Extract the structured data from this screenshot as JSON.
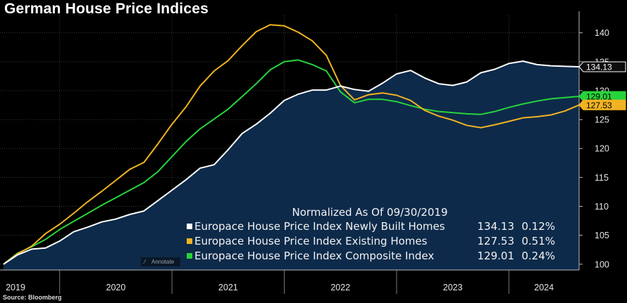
{
  "title": "German House Price Indices",
  "source": "Source: Bloomberg",
  "annotate_label": "Annotate",
  "colors": {
    "background": "#000000",
    "area_fill": "#0d2a4a",
    "grid": "#3a3a3a",
    "newly_built": "#ffffff",
    "existing": "#f0b323",
    "composite": "#27d33b"
  },
  "chart_data": {
    "type": "line",
    "title": "German House Price Indices",
    "subtitle": "Normalized As Of 09/30/2019",
    "x_axis": {
      "tick_labels": [
        "2019",
        "2020",
        "2021",
        "2022",
        "2023",
        "2024"
      ],
      "range_quarters": [
        "2019-Q3",
        "2024-Q3"
      ]
    },
    "y_axis": {
      "position": "right",
      "ylim": [
        99,
        143
      ],
      "ticks": [
        100,
        105,
        110,
        115,
        120,
        125,
        130,
        135,
        140
      ],
      "tick_labels": [
        "100",
        "105",
        "110",
        "115",
        "120",
        "125",
        "130",
        "135",
        "140"
      ]
    },
    "grid": true,
    "legend_placement": "bottom-right",
    "series": [
      {
        "key": "newly_built",
        "name": "Europace House Price Index Newly Built Homes",
        "last": "134.13",
        "change": "0.12%",
        "area": true,
        "values": [
          100.0,
          101.6,
          102.6,
          102.8,
          104.0,
          105.6,
          106.4,
          107.3,
          107.8,
          108.6,
          109.2,
          111.0,
          112.8,
          114.6,
          116.6,
          117.2,
          119.8,
          122.6,
          124.2,
          126.1,
          128.3,
          129.4,
          130.1,
          130.1,
          130.8,
          130.2,
          129.9,
          131.3,
          132.9,
          133.5,
          132.2,
          131.2,
          130.9,
          131.5,
          133.1,
          133.7,
          134.7,
          135.1,
          134.5,
          134.3,
          134.2,
          134.13
        ]
      },
      {
        "key": "existing",
        "name": "Europace House Price Index Existing Homes",
        "last": "127.53",
        "change": "0.51%",
        "area": false,
        "values": [
          100.0,
          101.8,
          103.1,
          105.3,
          106.9,
          108.8,
          110.8,
          112.6,
          114.5,
          116.4,
          117.6,
          120.8,
          124.2,
          127.2,
          130.8,
          133.4,
          135.2,
          137.8,
          140.2,
          141.4,
          141.2,
          140.1,
          138.6,
          136.1,
          130.9,
          128.4,
          129.3,
          129.6,
          129.2,
          128.3,
          126.6,
          125.6,
          124.9,
          124.0,
          123.6,
          124.1,
          124.7,
          125.3,
          125.5,
          125.8,
          126.5,
          127.53
        ]
      },
      {
        "key": "composite",
        "name": "Europace House Price Index Composite Index",
        "last": "129.01",
        "change": "0.24%",
        "area": false,
        "values": [
          100.0,
          101.9,
          103.0,
          104.3,
          106.0,
          107.4,
          108.8,
          110.2,
          111.5,
          112.8,
          114.1,
          116.0,
          118.6,
          121.2,
          123.4,
          125.1,
          126.8,
          129.0,
          131.2,
          133.6,
          135.0,
          135.3,
          134.5,
          133.4,
          129.8,
          127.9,
          128.5,
          128.5,
          128.1,
          127.4,
          126.8,
          126.4,
          126.2,
          126.0,
          125.9,
          126.4,
          127.1,
          127.7,
          128.2,
          128.6,
          128.8,
          129.01
        ]
      }
    ]
  }
}
